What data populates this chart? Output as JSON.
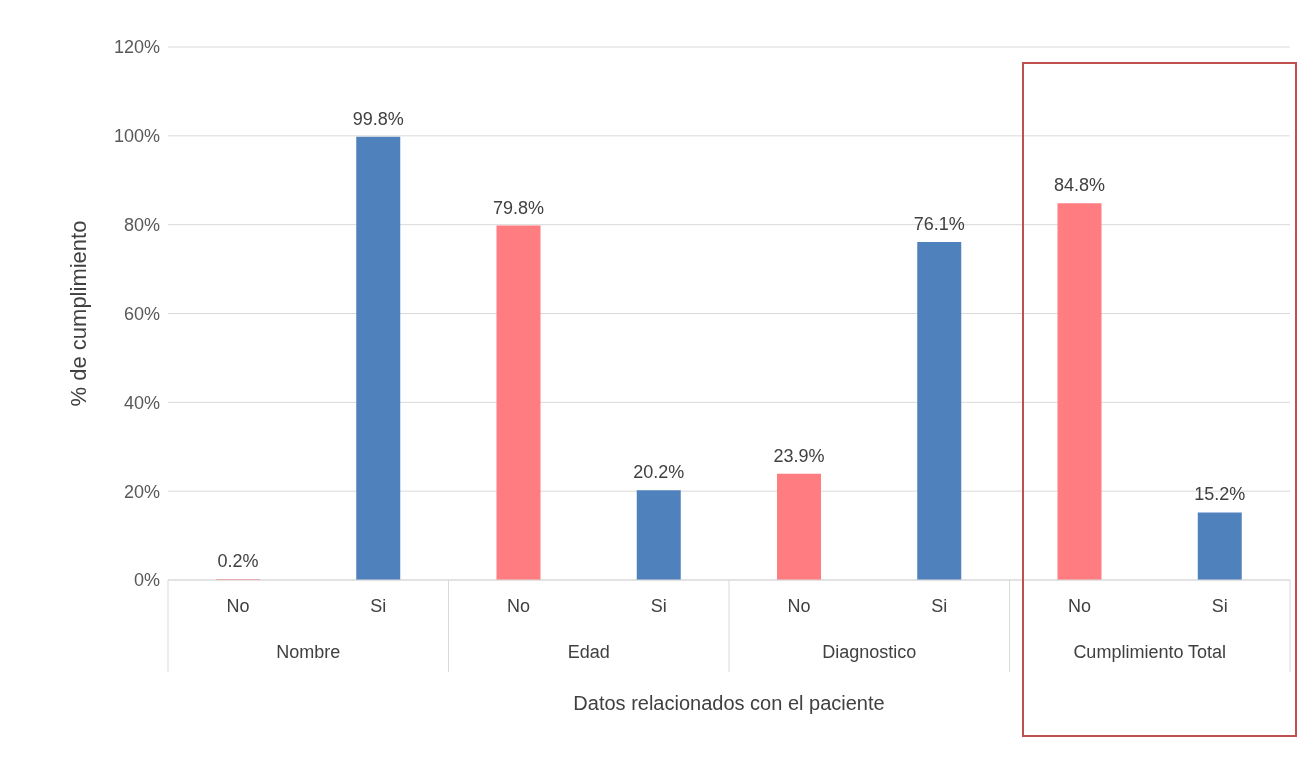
{
  "chart_data": {
    "type": "bar",
    "xlabel": "Datos relacionados con el paciente",
    "ylabel": "% de cumplimiento",
    "categories": [
      "No",
      "Si",
      "No",
      "Si",
      "No",
      "Si",
      "No",
      "Si"
    ],
    "annotations": [
      "Nombre",
      "Edad",
      "Diagnostico",
      "Cumplimiento Total"
    ],
    "values": [
      0.2,
      99.8,
      79.8,
      20.2,
      23.9,
      76.1,
      84.8,
      15.2
    ],
    "colors": [
      "#ff7c80",
      "#4f81bd",
      "#ff7c80",
      "#4f81bd",
      "#ff7c80",
      "#4f81bd",
      "#ff7c80",
      "#4f81bd"
    ],
    "value_labels": [
      "0.2%",
      "99.8%",
      "79.8%",
      "20.2%",
      "23.9%",
      "76.1%",
      "84.8%",
      "15.2%"
    ],
    "ylim": [
      0,
      120
    ],
    "yticks": [
      {
        "value": 0,
        "label": "0%"
      },
      {
        "value": 20,
        "label": "20%"
      },
      {
        "value": 40,
        "label": "40%"
      },
      {
        "value": 60,
        "label": "60%"
      },
      {
        "value": 80,
        "label": "80%"
      },
      {
        "value": 100,
        "label": "100%"
      },
      {
        "value": 120,
        "label": "120%"
      }
    ],
    "grid": "y",
    "legend": false
  }
}
